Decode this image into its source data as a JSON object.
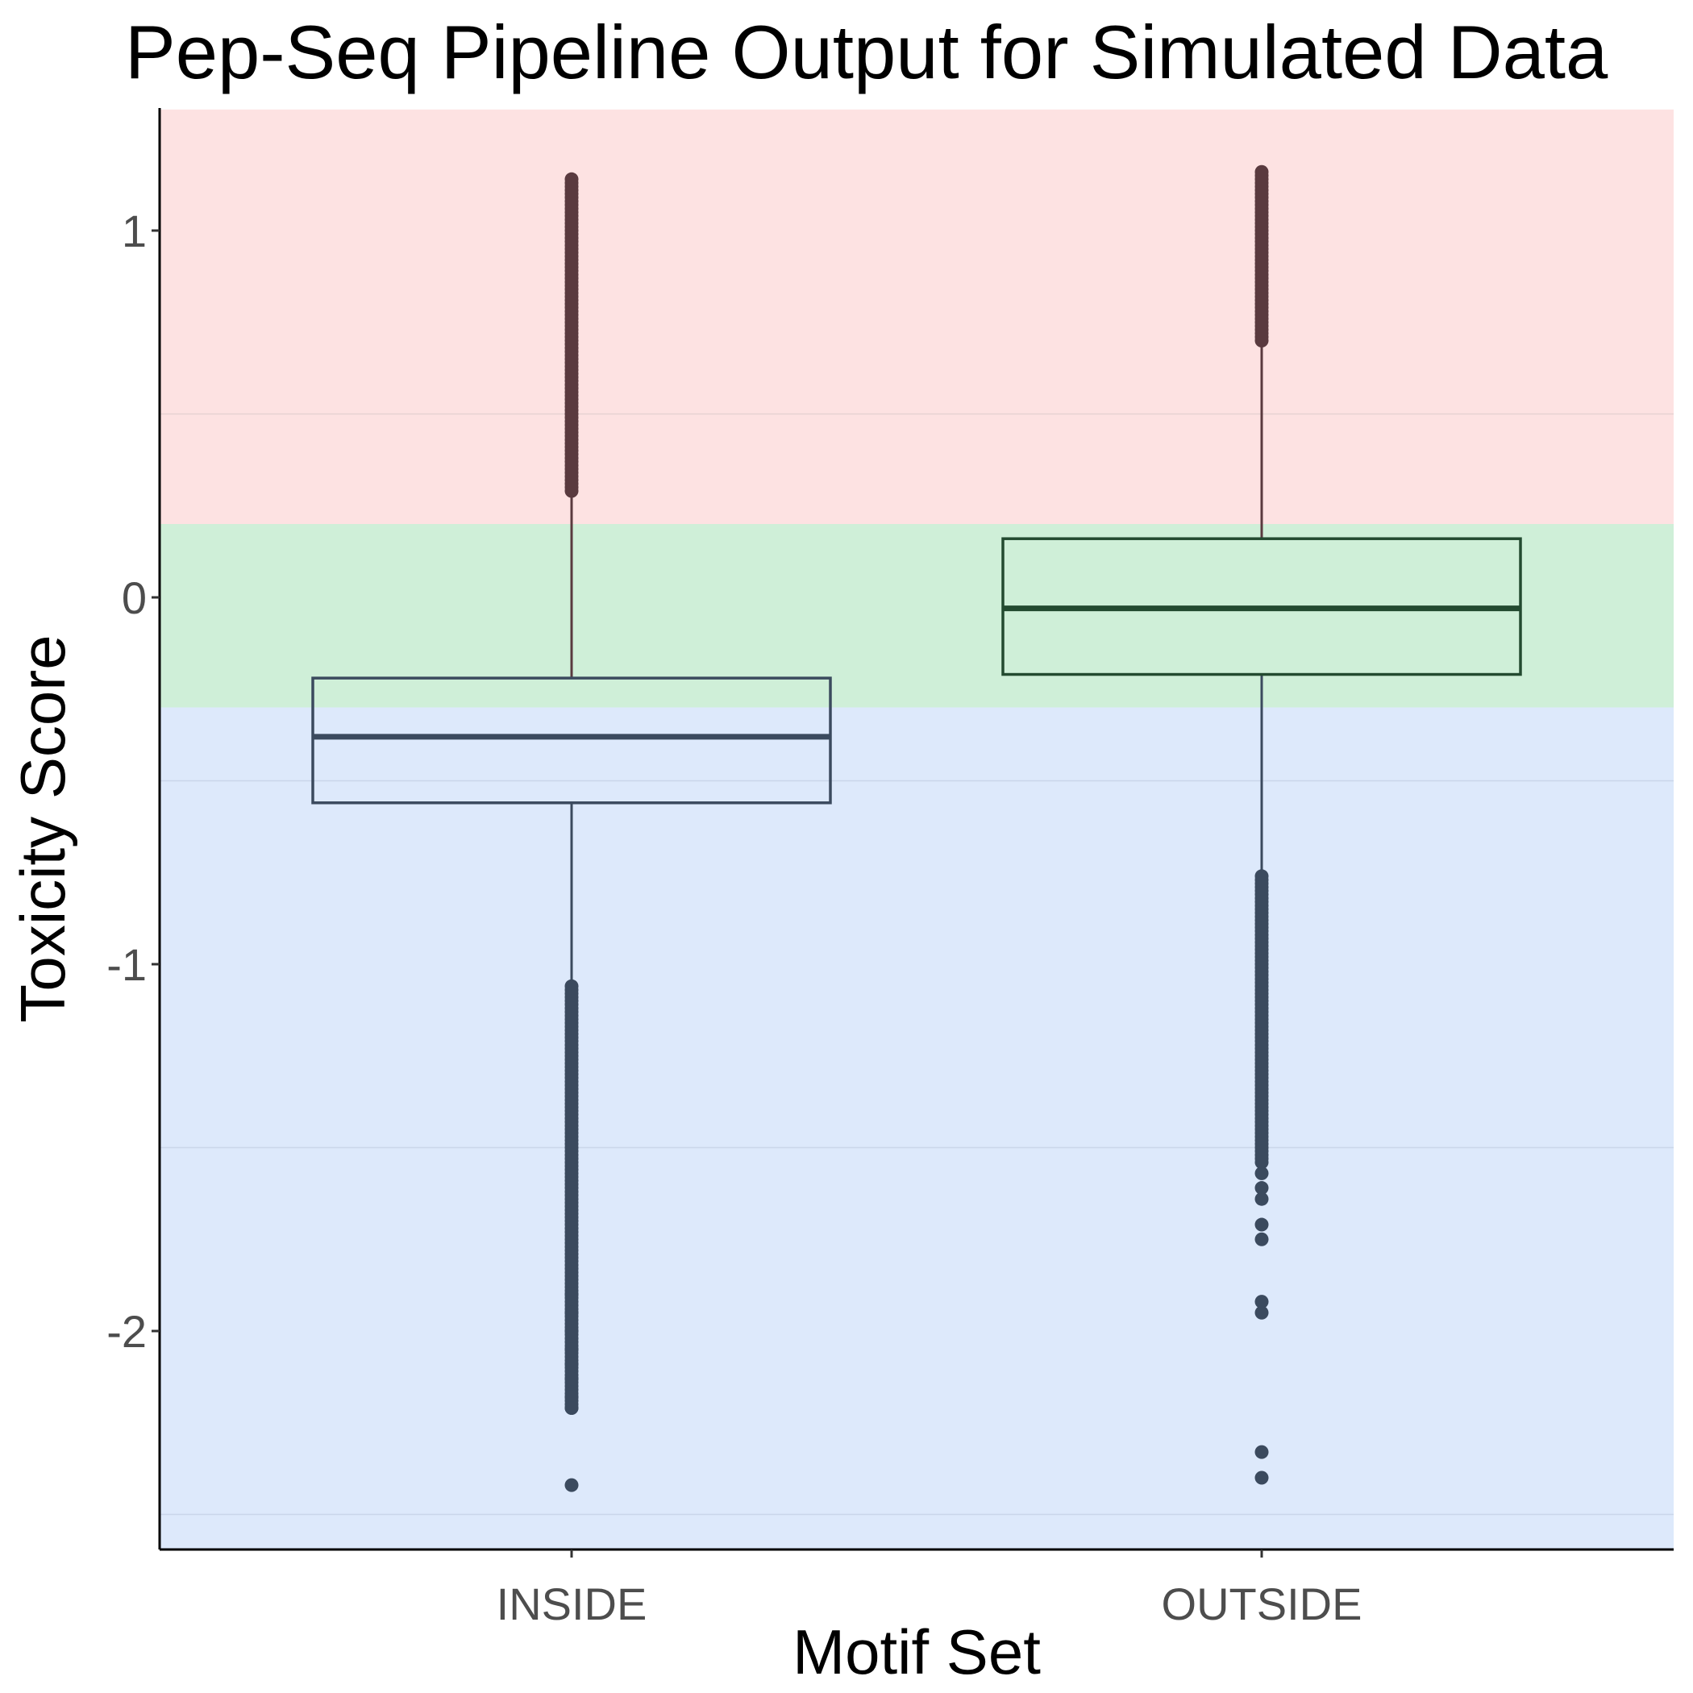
{
  "chart_data": {
    "type": "boxplot",
    "title": "Pep-Seq Pipeline Output for Simulated Data",
    "xlabel": "Motif Set",
    "ylabel": "Toxicity Score",
    "ylim": [
      -2.6,
      1.33
    ],
    "yticks": [
      1,
      0,
      -1,
      -2
    ],
    "ytick_labels": [
      "1",
      "0",
      "-1",
      "-2"
    ],
    "minor_gridlines": [
      0.5,
      -0.5,
      -1.5,
      -2.5
    ],
    "grid": "minor gridlines faint, no major gridlines",
    "bands": [
      {
        "name": "high",
        "from": 0.2,
        "to": 1.33,
        "color": "#fde2e2"
      },
      {
        "name": "mid",
        "from": -0.3,
        "to": 0.2,
        "color": "#cfefd8"
      },
      {
        "name": "low",
        "from": -2.6,
        "to": -0.3,
        "color": "#dde9fb"
      }
    ],
    "categories": [
      "INSIDE",
      "OUTSIDE"
    ],
    "boxes": [
      {
        "category": "INSIDE",
        "q1": -0.56,
        "median": -0.38,
        "q3": -0.22,
        "whisker_low": -1.06,
        "whisker_high": 0.29,
        "outliers_high_range": [
          0.29,
          1.14
        ],
        "outliers_low_range": [
          -2.21,
          -1.06
        ],
        "outliers_low_extra": [
          -1.9,
          -1.95,
          -2.0,
          -2.05,
          -2.09,
          -2.13,
          -2.18,
          -2.21,
          -2.42
        ],
        "box_color": "#3b4a5e",
        "outlier_color_high": "#5a3a3f",
        "outlier_color_low": "#3b4a5e"
      },
      {
        "category": "OUTSIDE",
        "q1": -0.21,
        "median": -0.03,
        "q3": 0.16,
        "whisker_low": -0.76,
        "whisker_high": 0.7,
        "outliers_high_range": [
          0.7,
          1.16
        ],
        "outliers_low_range": [
          -1.54,
          -0.76
        ],
        "outliers_low_extra": [
          -1.57,
          -1.61,
          -1.64,
          -1.71,
          -1.75,
          -1.92,
          -1.95,
          -2.33,
          -2.4
        ],
        "box_color": "#234a30",
        "outlier_color_high": "#5a3a3f",
        "outlier_color_low": "#3b4a5e"
      }
    ],
    "colors": {
      "axis": "#000000",
      "tick_label": "#4d4d4d",
      "minor_grid": "#e6d2d2",
      "minor_grid_low": "#cad6ea",
      "whisker_high_color": "#5a3a3f",
      "whisker_low_color": "#3b4a5e"
    }
  }
}
